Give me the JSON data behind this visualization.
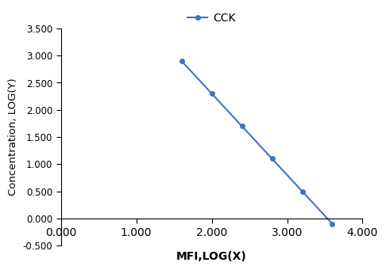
{
  "x": [
    1.6,
    2.0,
    2.4,
    2.8,
    3.2,
    3.6
  ],
  "y": [
    2.9,
    2.3,
    1.7,
    1.1,
    0.5,
    -0.1
  ],
  "line_color": "#4472C4",
  "marker": "o",
  "marker_size": 4,
  "line_width": 1.5,
  "xlabel": "MFI,LOG(X)",
  "ylabel": "Concentration, LOG(Y)",
  "xlim": [
    0.0,
    4.0
  ],
  "ylim": [
    -0.5,
    3.5
  ],
  "xticks": [
    0.0,
    1.0,
    2.0,
    3.0,
    4.0
  ],
  "yticks": [
    -0.5,
    0.0,
    0.5,
    1.0,
    1.5,
    2.0,
    2.5,
    3.0,
    3.5
  ],
  "xtick_labels": [
    "0.000",
    "1.000",
    "2.000",
    "3.000",
    "4.000"
  ],
  "ytick_labels": [
    "-0.500",
    "0.000",
    "0.500",
    "1.000",
    "1.500",
    "2.000",
    "2.500",
    "3.000",
    "3.500"
  ],
  "legend_label": "CCK",
  "background_color": "#ffffff",
  "tick_fontsize": 8.5,
  "xlabel_fontsize": 10,
  "ylabel_fontsize": 9.5,
  "legend_fontsize": 10
}
